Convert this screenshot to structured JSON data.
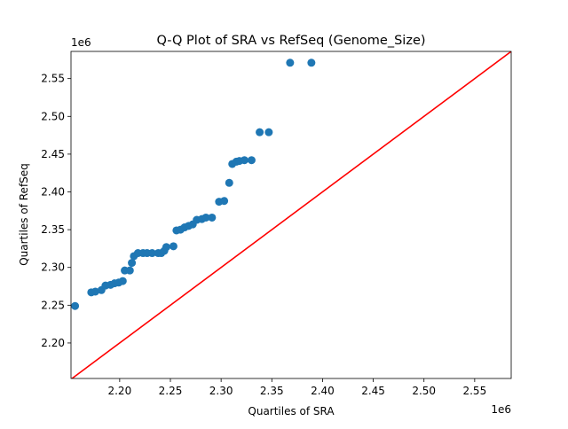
{
  "chart_data": {
    "type": "scatter",
    "title": "Q-Q Plot of SRA vs RefSeq (Genome_Size)",
    "xlabel": "Quartiles of SRA",
    "ylabel": "Quartiles of RefSeq",
    "x_offset_label": "1e6",
    "y_offset_label": "1e6",
    "xlim": [
      2.152,
      2.586
    ],
    "ylim": [
      2.153,
      2.586
    ],
    "xticks": [
      2.2,
      2.25,
      2.3,
      2.35,
      2.4,
      2.45,
      2.5,
      2.55
    ],
    "xtick_labels": [
      "2.20",
      "2.25",
      "2.30",
      "2.35",
      "2.40",
      "2.45",
      "2.50",
      "2.55"
    ],
    "yticks": [
      2.2,
      2.25,
      2.3,
      2.35,
      2.4,
      2.45,
      2.5,
      2.55
    ],
    "ytick_labels": [
      "2.20",
      "2.25",
      "2.30",
      "2.35",
      "2.40",
      "2.45",
      "2.50",
      "2.55"
    ],
    "grid": false,
    "point_color": "#1f77b4",
    "reference_line": {
      "type": "y=x",
      "color": "#ff0000"
    },
    "points": [
      [
        2.156,
        2.249
      ],
      [
        2.172,
        2.267
      ],
      [
        2.176,
        2.268
      ],
      [
        2.182,
        2.27
      ],
      [
        2.186,
        2.276
      ],
      [
        2.191,
        2.277
      ],
      [
        2.195,
        2.279
      ],
      [
        2.199,
        2.28
      ],
      [
        2.203,
        2.282
      ],
      [
        2.205,
        2.296
      ],
      [
        2.21,
        2.296
      ],
      [
        2.212,
        2.306
      ],
      [
        2.214,
        2.315
      ],
      [
        2.218,
        2.319
      ],
      [
        2.223,
        2.319
      ],
      [
        2.227,
        2.319
      ],
      [
        2.232,
        2.319
      ],
      [
        2.238,
        2.319
      ],
      [
        2.241,
        2.319
      ],
      [
        2.244,
        2.322
      ],
      [
        2.246,
        2.327
      ],
      [
        2.253,
        2.328
      ],
      [
        2.256,
        2.349
      ],
      [
        2.26,
        2.35
      ],
      [
        2.264,
        2.353
      ],
      [
        2.268,
        2.355
      ],
      [
        2.272,
        2.357
      ],
      [
        2.276,
        2.363
      ],
      [
        2.281,
        2.364
      ],
      [
        2.285,
        2.366
      ],
      [
        2.291,
        2.366
      ],
      [
        2.298,
        2.387
      ],
      [
        2.303,
        2.388
      ],
      [
        2.308,
        2.412
      ],
      [
        2.311,
        2.437
      ],
      [
        2.315,
        2.44
      ],
      [
        2.318,
        2.441
      ],
      [
        2.323,
        2.442
      ],
      [
        2.33,
        2.442
      ],
      [
        2.338,
        2.479
      ],
      [
        2.347,
        2.479
      ],
      [
        2.368,
        2.571
      ],
      [
        2.389,
        2.571
      ]
    ]
  }
}
